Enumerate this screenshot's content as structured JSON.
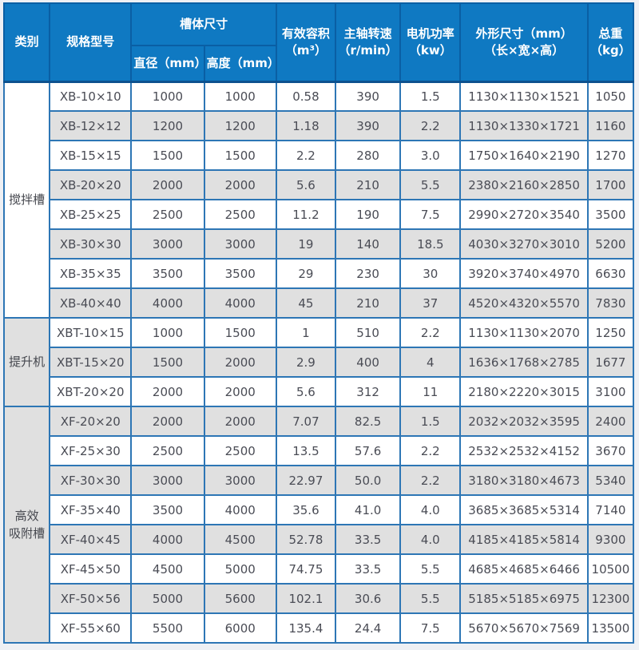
{
  "colors": {
    "header_bg": "#0f79c2",
    "header_border": "#0a5fa4",
    "header_text": "#ffffff",
    "grid_border": "#2d76b5",
    "row_white": "#ffffff",
    "row_gray": "#e0e0e0",
    "body_text": "#4a4c55",
    "page_bg": "#eef0f4"
  },
  "table": {
    "header": {
      "category": "类别",
      "model": "规格型号",
      "tank_size": "槽体尺寸",
      "diameter": "直径（mm）",
      "height": "高度（mm）",
      "volume": "有效容积\n（m³）",
      "speed": "主轴转速\n（r/min）",
      "power": "电机功率\n（kw）",
      "dimensions": "外形尺寸（mm）\n（长×宽×高）",
      "weight": "总重\n（kg）"
    },
    "column_keys": [
      "model",
      "diameter",
      "height",
      "volume",
      "speed",
      "power",
      "dimensions",
      "weight"
    ],
    "sections": [
      {
        "category": "搅拌槽",
        "rows": [
          [
            "XB-10×10",
            "1000",
            "1000",
            "0.58",
            "390",
            "1.5",
            "1130×1130×1521",
            "1050"
          ],
          [
            "XB-12×12",
            "1200",
            "1200",
            "1.18",
            "390",
            "2.2",
            "1130×1330×1721",
            "1160"
          ],
          [
            "XB-15×15",
            "1500",
            "1500",
            "2.2",
            "280",
            "3.0",
            "1750×1640×2190",
            "1270"
          ],
          [
            "XB-20×20",
            "2000",
            "2000",
            "5.6",
            "210",
            "5.5",
            "2380×2160×2850",
            "1700"
          ],
          [
            "XB-25×25",
            "2500",
            "2500",
            "11.2",
            "190",
            "7.5",
            "2990×2720×3540",
            "3500"
          ],
          [
            "XB-30×30",
            "3000",
            "3000",
            "19",
            "140",
            "18.5",
            "4030×3270×3010",
            "5200"
          ],
          [
            "XB-35×35",
            "3500",
            "3500",
            "29",
            "230",
            "30",
            "3920×3740×4970",
            "6630"
          ],
          [
            "XB-40×40",
            "4000",
            "4000",
            "45",
            "210",
            "37",
            "4520×4320×5570",
            "7830"
          ]
        ]
      },
      {
        "category": "提升机",
        "rows": [
          [
            "XBT-10×15",
            "1000",
            "1500",
            "1",
            "510",
            "2.2",
            "1130×1130×2070",
            "1250"
          ],
          [
            "XBT-15×20",
            "1500",
            "2000",
            "2.9",
            "400",
            "4",
            "1636×1768×2785",
            "1677"
          ],
          [
            "XBT-20×20",
            "2000",
            "2000",
            "5.6",
            "312",
            "11",
            "2180×2220×3015",
            "3100"
          ]
        ]
      },
      {
        "category": "高效\n吸附槽",
        "rows": [
          [
            "XF-20×20",
            "2000",
            "2000",
            "7.07",
            "82.5",
            "1.5",
            "2032×2032×3595",
            "2400"
          ],
          [
            "XF-25×30",
            "2500",
            "2500",
            "13.5",
            "57.6",
            "2.2",
            "2532×2532×4152",
            "3670"
          ],
          [
            "XF-30×30",
            "3000",
            "3000",
            "22.97",
            "50.0",
            "2.2",
            "3180×3180×4673",
            "5340"
          ],
          [
            "XF-35×40",
            "3500",
            "4000",
            "35.6",
            "41.0",
            "4.0",
            "3685×3685×5314",
            "7140"
          ],
          [
            "XF-40×45",
            "4000",
            "4500",
            "52.78",
            "33.5",
            "4.0",
            "4185×4185×5814",
            "9300"
          ],
          [
            "XF-45×50",
            "4500",
            "5000",
            "74.75",
            "33.5",
            "5.5",
            "4685×4685×6466",
            "10500"
          ],
          [
            "XF-50×56",
            "5000",
            "5600",
            "102.1",
            "30.6",
            "5.5",
            "5185×5185×6975",
            "12300"
          ],
          [
            "XF-55×60",
            "5500",
            "6000",
            "135.4",
            "24.4",
            "7.5",
            "5670×5670×7569",
            "13500"
          ]
        ]
      }
    ]
  }
}
